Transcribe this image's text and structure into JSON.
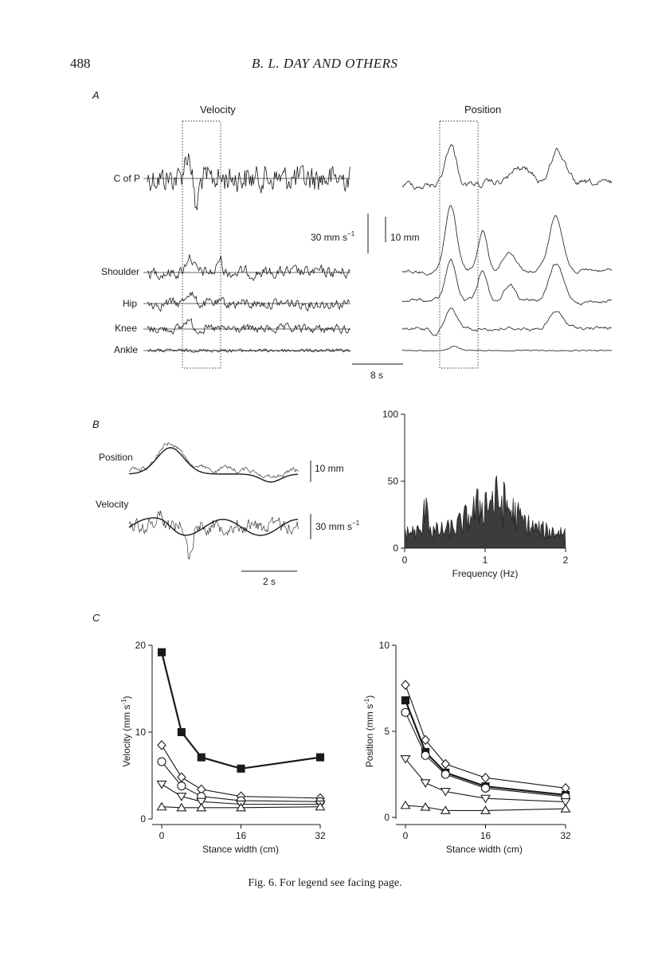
{
  "page": {
    "number": "488",
    "running_head": "B. L. DAY AND OTHERS",
    "caption": "Fig. 6. For legend see facing page."
  },
  "panel_a": {
    "label": "A",
    "velocity_title": "Velocity",
    "position_title": "Position",
    "trace_labels": [
      "C of P",
      "Shoulder",
      "Hip",
      "Knee",
      "Ankle"
    ],
    "velocity_scale": "30 mm s",
    "velocity_scale_exp": "−1",
    "position_scale": "10 mm",
    "time_scale": "8 s"
  },
  "panel_b": {
    "label": "B",
    "position_label": "Position",
    "velocity_label": "Velocity",
    "position_scale": "10 mm",
    "velocity_scale": "30 mm s",
    "velocity_scale_exp": "−1",
    "time_scale": "2 s"
  },
  "panel_c": {
    "label": "C"
  },
  "chart_data": [
    {
      "id": "spectrum",
      "type": "area",
      "xlabel": "Frequency (Hz)",
      "ylabel": "",
      "xlim": [
        0,
        2
      ],
      "ylim": [
        0,
        100
      ],
      "xticks": [
        0,
        1,
        2
      ],
      "yticks": [
        0,
        50,
        100
      ],
      "grid": false
    },
    {
      "id": "velocity_vs_width",
      "type": "line",
      "xlabel": "Stance width (cm)",
      "ylabel": "Velocity (mm s",
      "ylabel_exp": "-1",
      "ylabel_close": ")",
      "x": [
        0,
        4,
        8,
        16,
        32
      ],
      "xticks": [
        0,
        16,
        32
      ],
      "yticks": [
        0,
        10,
        20
      ],
      "xlim": [
        0,
        32
      ],
      "ylim": [
        0,
        20
      ],
      "grid": false,
      "series": [
        {
          "marker": "filled-square",
          "values": [
            19.2,
            10.0,
            7.1,
            5.8,
            7.1
          ]
        },
        {
          "marker": "open-diamond",
          "values": [
            8.5,
            4.8,
            3.4,
            2.6,
            2.4
          ]
        },
        {
          "marker": "open-circle",
          "values": [
            6.6,
            3.8,
            2.6,
            2.1,
            2.0
          ]
        },
        {
          "marker": "open-down-triangle",
          "values": [
            4.0,
            2.6,
            2.0,
            1.7,
            1.7
          ]
        },
        {
          "marker": "open-up-triangle",
          "values": [
            1.4,
            1.3,
            1.3,
            1.3,
            1.4
          ]
        }
      ]
    },
    {
      "id": "position_vs_width",
      "type": "line",
      "xlabel": "Stance width (cm)",
      "ylabel": "Position (mm s",
      "ylabel_exp": "-1",
      "ylabel_close": ")",
      "x": [
        0,
        4,
        8,
        16,
        32
      ],
      "xticks": [
        0,
        16,
        32
      ],
      "yticks": [
        0,
        5,
        10
      ],
      "xlim": [
        0,
        32
      ],
      "ylim": [
        0,
        10
      ],
      "grid": false,
      "series": [
        {
          "marker": "open-diamond",
          "values": [
            7.7,
            4.5,
            3.1,
            2.3,
            1.7
          ]
        },
        {
          "marker": "filled-square",
          "values": [
            6.8,
            3.8,
            2.6,
            1.8,
            1.3
          ]
        },
        {
          "marker": "open-circle",
          "values": [
            6.1,
            3.6,
            2.5,
            1.7,
            1.2
          ]
        },
        {
          "marker": "open-down-triangle",
          "values": [
            3.4,
            2.0,
            1.5,
            1.1,
            0.9
          ]
        },
        {
          "marker": "open-up-triangle",
          "values": [
            0.7,
            0.6,
            0.4,
            0.4,
            0.5
          ]
        }
      ]
    }
  ]
}
